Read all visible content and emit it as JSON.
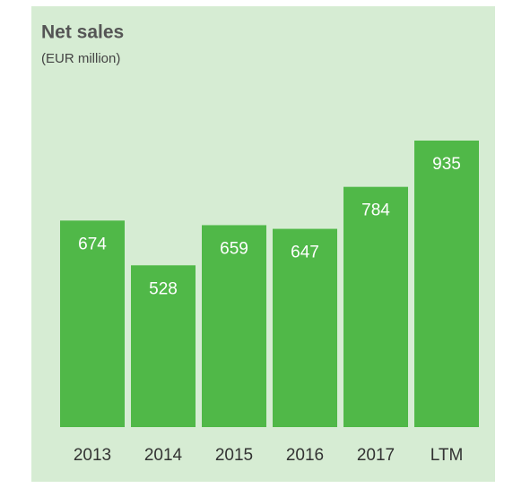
{
  "chart_data": {
    "type": "bar",
    "title": "Net sales",
    "subtitle": "(EUR million)",
    "categories": [
      "2013",
      "2014",
      "2015",
      "2016",
      "2017",
      "LTM"
    ],
    "values": [
      674,
      528,
      659,
      647,
      784,
      935
    ],
    "color": "#50b848"
  }
}
